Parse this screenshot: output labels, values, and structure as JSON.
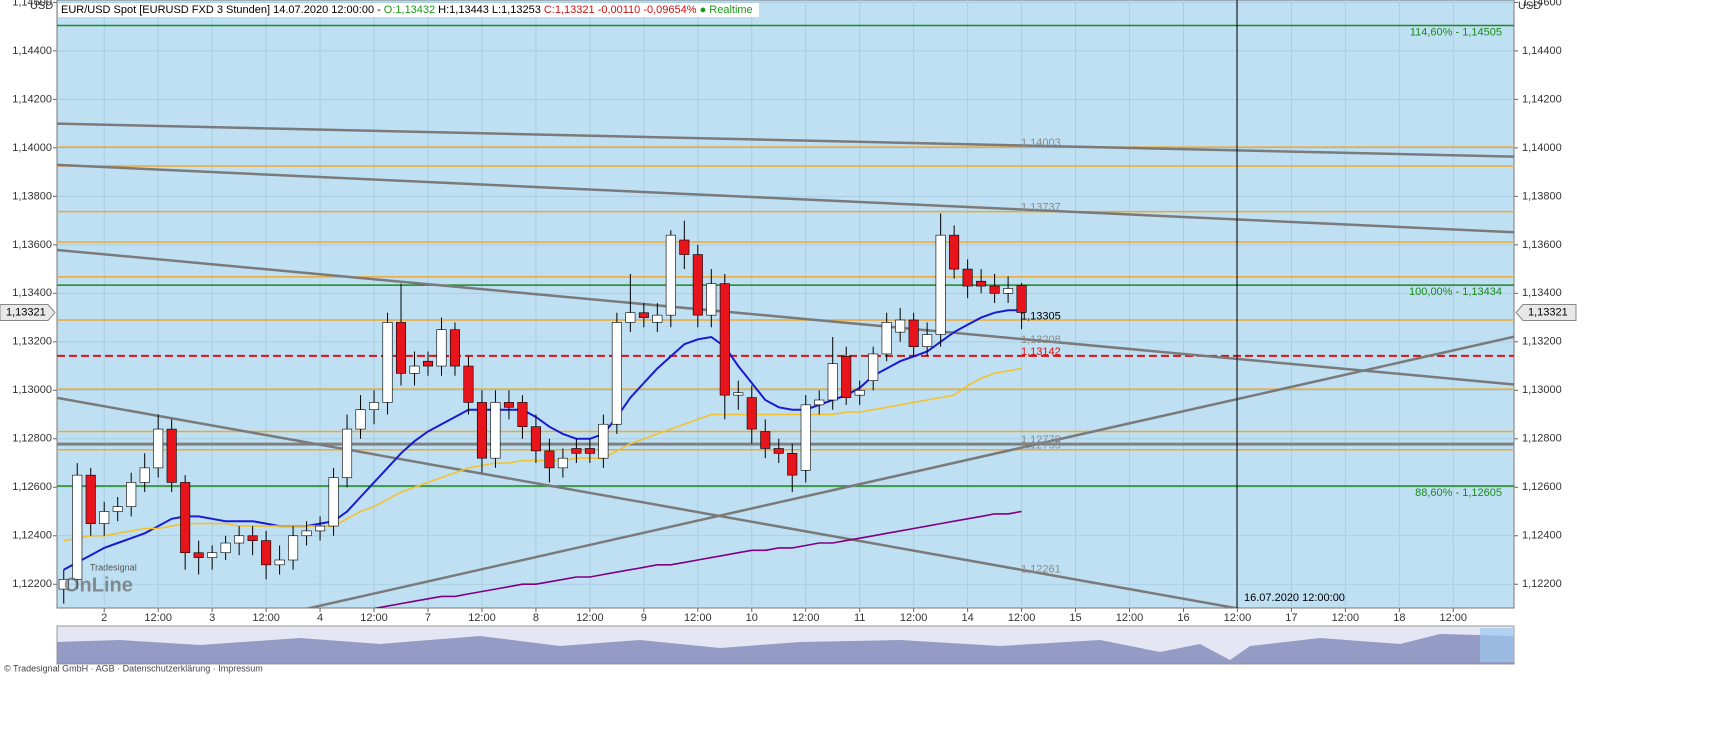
{
  "header": [
    {
      "text": "EUR/USD Spot [EURUSD FXD 3 Stunden] 14.07.2020 12:00:00 -",
      "color": "#000000"
    },
    {
      "text": "O:1,13432",
      "color": "#1a9a1a"
    },
    {
      "text": "H:1,13443",
      "color": "#000000"
    },
    {
      "text": "L:1,13253",
      "color": "#000000"
    },
    {
      "text": "C:1,13321 -0,00110 -0,09654%",
      "color": "#d01010"
    },
    {
      "text": "● Realtime",
      "color": "#1a9a1a"
    }
  ],
  "currency": "USD",
  "watermark_top": "Tradesignal",
  "watermark": "OnLine",
  "vline_label": "16.07.2020 12:00:00",
  "footer": "© Tradesignal GmbH · AGB · Datenschutzerklärung · Impressum",
  "chart_data": {
    "type": "candlestick",
    "ylim": [
      1.12102,
      1.1461
    ],
    "yticks": [
      {
        "value": 1.146,
        "label": "1,14600"
      },
      {
        "value": 1.144,
        "label": "1,14400"
      },
      {
        "value": 1.142,
        "label": "1,14200"
      },
      {
        "value": 1.14,
        "label": "1,14000"
      },
      {
        "value": 1.138,
        "label": "1,13800"
      },
      {
        "value": 1.136,
        "label": "1,13600"
      },
      {
        "value": 1.134,
        "label": "1,13400"
      },
      {
        "value": 1.132,
        "label": "1,13200"
      },
      {
        "value": 1.13,
        "label": "1,13000"
      },
      {
        "value": 1.128,
        "label": "1,12800"
      },
      {
        "value": 1.126,
        "label": "1,12600"
      },
      {
        "value": 1.124,
        "label": "1,12400"
      },
      {
        "value": 1.122,
        "label": "1,12200"
      }
    ],
    "grid": true,
    "up_color": "#ffffff",
    "down_color": "#e8141c",
    "categories": [
      null,
      null,
      null,
      "2",
      null,
      null,
      null,
      "12:00",
      null,
      null,
      null,
      "3",
      null,
      null,
      null,
      "12:00",
      null,
      null,
      null,
      "4",
      null,
      null,
      null,
      "12:00",
      null,
      null,
      null,
      "7",
      null,
      null,
      null,
      "12:00",
      null,
      null,
      null,
      "8",
      null,
      null,
      null,
      "12:00",
      null,
      null,
      null,
      "9",
      null,
      null,
      null,
      "12:00",
      null,
      null,
      null,
      "10",
      null,
      null,
      null,
      "12:00",
      null,
      null,
      null,
      "11",
      null,
      null,
      null,
      "12:00",
      null,
      null,
      null,
      "14",
      null,
      null,
      null,
      "12:00",
      null,
      null,
      null,
      "15",
      null,
      null,
      null,
      "12:00",
      null,
      null,
      null,
      "16",
      null,
      null,
      null,
      "12:00",
      null,
      null,
      null,
      "17",
      null,
      null,
      null,
      "12:00",
      null,
      null,
      null,
      "18",
      null,
      null,
      null,
      "12:00",
      null,
      null,
      null,
      null
    ],
    "open": [
      1.1218,
      1.1222,
      1.1265,
      1.1245,
      1.125,
      1.1252,
      1.1262,
      1.1268,
      1.1284,
      1.1262,
      1.1233,
      1.1231,
      1.1233,
      1.1237,
      1.124,
      1.1238,
      1.1228,
      1.123,
      1.124,
      1.1242,
      1.1244,
      1.1264,
      1.1284,
      1.1292,
      1.1295,
      1.1328,
      1.1307,
      1.1312,
      1.131,
      1.1325,
      1.131,
      1.1295,
      1.1272,
      1.1295,
      1.1295,
      1.1285,
      1.1275,
      1.1268,
      1.1276,
      1.1276,
      1.1272,
      1.1286,
      1.1328,
      1.1332,
      1.1328,
      1.1331,
      1.1362,
      1.1356,
      1.1331,
      1.1344,
      1.1298,
      1.1297,
      1.1283,
      1.1276,
      1.1274,
      1.1267,
      1.1294,
      1.1296,
      1.1314,
      1.1298,
      1.1304,
      1.1315,
      1.1324,
      1.1329,
      1.1318,
      1.1323,
      1.1364,
      1.135,
      1.1345,
      1.1343,
      1.134,
      1.13432,
      null,
      null,
      null,
      null,
      null,
      null,
      null,
      null,
      null,
      null,
      null,
      null,
      null,
      null,
      null,
      null,
      null,
      null,
      null,
      null,
      null,
      null,
      null,
      null,
      null,
      null,
      null,
      null,
      null,
      null,
      null,
      null,
      null,
      null,
      null,
      null
    ],
    "high": [
      1.1226,
      1.127,
      1.1268,
      1.1254,
      1.1256,
      1.1266,
      1.1274,
      1.129,
      1.1288,
      1.1265,
      1.1238,
      1.1236,
      1.124,
      1.1244,
      1.1244,
      1.1242,
      1.1236,
      1.1244,
      1.1246,
      1.1248,
      1.1268,
      1.129,
      1.1298,
      1.13,
      1.1332,
      1.1344,
      1.1316,
      1.1316,
      1.133,
      1.1328,
      1.1314,
      1.13,
      1.13,
      1.13,
      1.1298,
      1.129,
      1.128,
      1.1276,
      1.128,
      1.128,
      1.129,
      1.1332,
      1.1348,
      1.1336,
      1.1336,
      1.1366,
      1.137,
      1.136,
      1.135,
      1.1348,
      1.1304,
      1.1302,
      1.1288,
      1.128,
      1.1278,
      1.1298,
      1.13,
      1.1322,
      1.1318,
      1.1304,
      1.1318,
      1.1332,
      1.1334,
      1.1332,
      1.1328,
      1.1373,
      1.1368,
      1.1354,
      1.135,
      1.1348,
      1.1347,
      1.13443,
      null,
      null,
      null,
      null,
      null,
      null,
      null,
      null,
      null,
      null,
      null,
      null,
      null,
      null,
      null,
      null,
      null,
      null,
      null,
      null,
      null,
      null,
      null,
      null,
      null,
      null,
      null,
      null,
      null,
      null,
      null,
      null,
      null,
      null,
      null,
      null
    ],
    "low": [
      1.1212,
      1.1218,
      1.124,
      1.124,
      1.1246,
      1.1248,
      1.1258,
      1.1264,
      1.1258,
      1.1226,
      1.1224,
      1.1226,
      1.123,
      1.1232,
      1.1232,
      1.1222,
      1.1224,
      1.1226,
      1.1236,
      1.1238,
      1.124,
      1.126,
      1.128,
      1.1286,
      1.129,
      1.1302,
      1.1302,
      1.1306,
      1.1306,
      1.1306,
      1.129,
      1.1266,
      1.1268,
      1.1288,
      1.128,
      1.127,
      1.1262,
      1.1264,
      1.127,
      1.127,
      1.1268,
      1.1282,
      1.1324,
      1.1326,
      1.1324,
      1.1326,
      1.135,
      1.1326,
      1.1326,
      1.1288,
      1.1292,
      1.1278,
      1.1272,
      1.127,
      1.1258,
      1.1262,
      1.129,
      1.1292,
      1.1294,
      1.1294,
      1.13,
      1.1312,
      1.132,
      1.1314,
      1.1314,
      1.1318,
      1.1346,
      1.1338,
      1.134,
      1.1336,
      1.1336,
      1.13253,
      null,
      null,
      null,
      null,
      null,
      null,
      null,
      null,
      null,
      null,
      null,
      null,
      null,
      null,
      null,
      null,
      null,
      null,
      null,
      null,
      null,
      null,
      null,
      null,
      null,
      null,
      null,
      null,
      null,
      null,
      null,
      null,
      null,
      null,
      null,
      null
    ],
    "close": [
      1.1222,
      1.1265,
      1.1245,
      1.125,
      1.1252,
      1.1262,
      1.1268,
      1.1284,
      1.1262,
      1.1233,
      1.1231,
      1.1233,
      1.1237,
      1.124,
      1.1238,
      1.1228,
      1.123,
      1.124,
      1.1242,
      1.1244,
      1.1264,
      1.1284,
      1.1292,
      1.1295,
      1.1328,
      1.1307,
      1.131,
      1.131,
      1.1325,
      1.131,
      1.1295,
      1.1272,
      1.1295,
      1.1293,
      1.1285,
      1.1275,
      1.1268,
      1.1272,
      1.1274,
      1.1274,
      1.1286,
      1.1328,
      1.1332,
      1.133,
      1.1331,
      1.1364,
      1.1356,
      1.1331,
      1.1344,
      1.1298,
      1.1299,
      1.1284,
      1.1276,
      1.1274,
      1.1265,
      1.1294,
      1.1296,
      1.1311,
      1.1297,
      1.13,
      1.1315,
      1.1328,
      1.1329,
      1.1318,
      1.1323,
      1.1364,
      1.135,
      1.1343,
      1.1343,
      1.134,
      1.1342,
      1.13321,
      null,
      null,
      null,
      null,
      null,
      null,
      null,
      null,
      null,
      null,
      null,
      null,
      null,
      null,
      null,
      null,
      null,
      null,
      null,
      null,
      null,
      null,
      null,
      null,
      null,
      null,
      null,
      null,
      null,
      null,
      null,
      null,
      null,
      null,
      null,
      null
    ],
    "series": [
      {
        "color": "#1a1ad0",
        "values": [
          1.1226,
          1.1229,
          1.1232,
          1.1235,
          1.1237,
          1.1239,
          1.1241,
          1.1244,
          1.1247,
          1.1248,
          1.1248,
          1.1247,
          1.1246,
          1.1246,
          1.1246,
          1.1245,
          1.1244,
          1.1244,
          1.1244,
          1.1245,
          1.1246,
          1.125,
          1.1256,
          1.1262,
          1.1268,
          1.1274,
          1.1279,
          1.1283,
          1.1286,
          1.1289,
          1.1292,
          1.1292,
          1.1292,
          1.1292,
          1.1292,
          1.1289,
          1.1285,
          1.1282,
          1.128,
          1.128,
          1.1282,
          1.1289,
          1.1297,
          1.1303,
          1.1309,
          1.1314,
          1.1319,
          1.1321,
          1.1322,
          1.1318,
          1.131,
          1.1303,
          1.1296,
          1.1293,
          1.1292,
          1.1292,
          1.1294,
          1.1296,
          1.1298,
          1.1301,
          1.1306,
          1.1309,
          1.1312,
          1.1314,
          1.1316,
          1.132,
          1.1324,
          1.1327,
          1.133,
          1.1332,
          1.1333,
          1.1333,
          null,
          null,
          null,
          null,
          null,
          null,
          null,
          null,
          null,
          null,
          null,
          null,
          null,
          null,
          null,
          null,
          null,
          null,
          null,
          null,
          null,
          null,
          null,
          null,
          null,
          null,
          null,
          null,
          null,
          null,
          null,
          null,
          null,
          null,
          null,
          null
        ]
      },
      {
        "color": "#f2c230",
        "values": [
          1.1238,
          1.1239,
          1.124,
          1.124,
          1.1241,
          1.1242,
          1.1243,
          1.1243,
          1.1244,
          1.1245,
          1.1245,
          1.1245,
          1.1245,
          1.1244,
          1.1244,
          1.1244,
          1.1244,
          1.1244,
          1.1244,
          1.1244,
          1.1244,
          1.1247,
          1.125,
          1.1252,
          1.1255,
          1.1258,
          1.126,
          1.1262,
          1.1264,
          1.1266,
          1.1268,
          1.1269,
          1.127,
          1.127,
          1.1271,
          1.1271,
          1.1271,
          1.1271,
          1.1272,
          1.1272,
          1.1272,
          1.1275,
          1.1278,
          1.128,
          1.1282,
          1.1284,
          1.1286,
          1.1288,
          1.129,
          1.129,
          1.129,
          1.129,
          1.129,
          1.129,
          1.129,
          1.129,
          1.129,
          1.129,
          1.1291,
          1.1291,
          1.1292,
          1.1293,
          1.1294,
          1.1295,
          1.1296,
          1.1297,
          1.1298,
          1.1302,
          1.1305,
          1.1307,
          1.1308,
          1.1309,
          null,
          null,
          null,
          null,
          null,
          null,
          null,
          null,
          null,
          null,
          null,
          null,
          null,
          null,
          null,
          null,
          null,
          null,
          null,
          null,
          null,
          null,
          null,
          null,
          null,
          null,
          null,
          null,
          null,
          null,
          null,
          null,
          null,
          null,
          null,
          null
        ]
      },
      {
        "color": "#800080",
        "values": [
          null,
          null,
          null,
          null,
          null,
          null,
          null,
          null,
          null,
          null,
          null,
          null,
          null,
          null,
          null,
          null,
          null,
          null,
          null,
          null,
          null,
          null,
          null,
          1.121,
          1.1211,
          1.1212,
          1.1213,
          1.1214,
          1.1215,
          1.1215,
          1.1216,
          1.1217,
          1.1218,
          1.1219,
          1.122,
          1.122,
          1.1221,
          1.1222,
          1.1223,
          1.1223,
          1.1224,
          1.1225,
          1.1226,
          1.1227,
          1.1228,
          1.1228,
          1.1229,
          1.123,
          1.1231,
          1.1232,
          1.1233,
          1.1234,
          1.1234,
          1.1235,
          1.1235,
          1.1236,
          1.1237,
          1.1237,
          1.1238,
          1.1239,
          1.124,
          1.1241,
          1.1242,
          1.1243,
          1.1244,
          1.1245,
          1.1246,
          1.1247,
          1.1248,
          1.1249,
          1.1249,
          1.125,
          null,
          null,
          null,
          null,
          null,
          null,
          null,
          null,
          null,
          null,
          null,
          null,
          null,
          null,
          null,
          null,
          null,
          null,
          null,
          null,
          null,
          null,
          null,
          null,
          null,
          null,
          null,
          null,
          null,
          null,
          null,
          null,
          null,
          null,
          null,
          null
        ]
      }
    ],
    "levels": [
      {
        "value": 1.14505,
        "color": "#1a8a1a",
        "style": "solid",
        "label": "114,60% - 1,14505",
        "label_side": "right"
      },
      {
        "value": 1.14003,
        "color": "#f0a830",
        "style": "solid",
        "label": "1,14003",
        "label_side": "left"
      },
      {
        "value": 1.13925,
        "color": "#f0a830",
        "style": "solid"
      },
      {
        "value": 1.13737,
        "color": "#f0a830",
        "style": "solid",
        "label": "1,13737",
        "label_side": "left"
      },
      {
        "value": 1.13612,
        "color": "#f0a830",
        "style": "solid"
      },
      {
        "value": 1.13468,
        "color": "#f0a830",
        "style": "solid"
      },
      {
        "value": 1.13434,
        "color": "#1a8a1a",
        "style": "solid",
        "label": "100,00% - 1,13434",
        "label_side": "right"
      },
      {
        "value": 1.1329,
        "color": "#f0a830",
        "style": "solid"
      },
      {
        "value": 1.13142,
        "color": "#e01010",
        "style": "dashed",
        "label": "1,13142",
        "label_side": "left"
      },
      {
        "value": 1.13005,
        "color": "#f0a830",
        "style": "solid"
      },
      {
        "value": 1.1283,
        "color": "#f0a830",
        "style": "solid"
      },
      {
        "value": 1.12778,
        "color": "#808080",
        "style": "thick",
        "label": "1,12778",
        "label_side": "left"
      },
      {
        "value": 1.12755,
        "color": "#f0a830",
        "style": "solid",
        "label": "1,12755",
        "label_side": "left"
      },
      {
        "value": 1.12605,
        "color": "#1a8a1a",
        "style": "solid",
        "label": "88,60% - 1,12605",
        "label_side": "right"
      }
    ],
    "annotations": [
      {
        "value": 1.13305,
        "label": "1,13305",
        "color": "#000000"
      },
      {
        "value": 1.13208,
        "label": "1,13208",
        "color": "#8a8a8a"
      },
      {
        "value": 1.12261,
        "label": "1,12261",
        "color": "#8a8a8a"
      }
    ],
    "trendlines": [
      {
        "start": 1.141,
        "end": 1.13964
      },
      {
        "start": 1.1393,
        "end": 1.13652
      },
      {
        "start": 1.13579,
        "end": 1.13024
      },
      {
        "start": 1.12969,
        "end": 1.11897
      },
      {
        "start": 1.11867,
        "end": 1.13221
      }
    ],
    "last_price": {
      "value": 1.13321,
      "label": "1,13321"
    }
  }
}
